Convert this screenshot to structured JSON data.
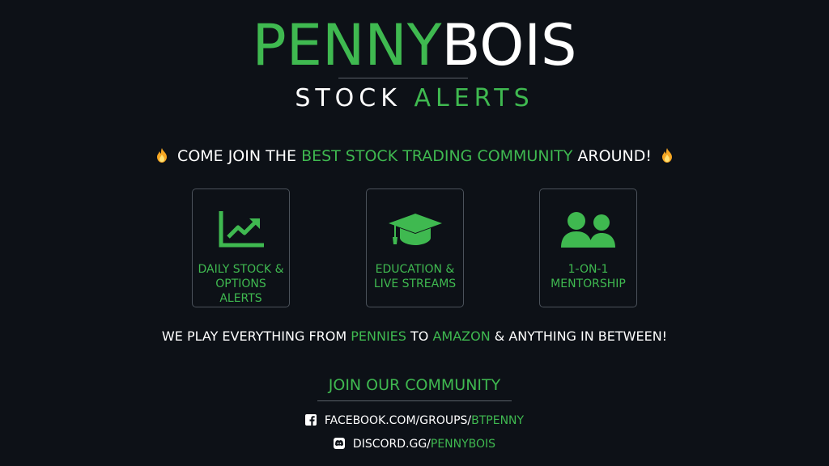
{
  "logo": {
    "part1": "PENNY",
    "part2": "BOIS"
  },
  "tagline": {
    "part1": "STOCK ",
    "part2": "ALERTS"
  },
  "headline": {
    "pre": "COME JOIN THE ",
    "highlight": "BEST STOCK TRADING COMMUNITY",
    "post": " AROUND!",
    "icon": "fire-icon"
  },
  "features": [
    {
      "icon": "chart-up-icon",
      "label": "DAILY STOCK & OPTIONS ALERTS"
    },
    {
      "icon": "graduation-cap-icon",
      "label": "EDUCATION & LIVE STREAMS"
    },
    {
      "icon": "users-icon",
      "label": "1-ON-1 MENTORSHIP"
    }
  ],
  "subline": {
    "pre": "WE PLAY EVERYTHING FROM ",
    "hl1": "PENNIES",
    "mid": " TO ",
    "hl2": "AMAZON",
    "post": " & ANYTHING IN BETWEEN!"
  },
  "cta": "JOIN OUR COMMUNITY",
  "links": [
    {
      "icon": "facebook-icon",
      "prefix": "FACEBOOK.COM/GROUPS/",
      "highlight": "BTPENNY"
    },
    {
      "icon": "discord-icon",
      "prefix": "DISCORD.GG/",
      "highlight": "PENNYBOIS"
    }
  ],
  "colors": {
    "background": "#0d1117",
    "accent": "#3fb950",
    "text": "#ffffff",
    "border": "#4b525b"
  }
}
